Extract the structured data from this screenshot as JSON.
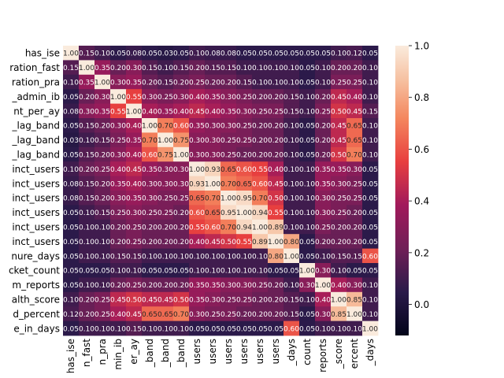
{
  "chart_data": {
    "type": "heatmap",
    "title": "",
    "xlabel": "",
    "ylabel": "",
    "row_labels": [
      "has_ise",
      "ration_fast",
      "ration_pra",
      "_admin_ib",
      "nt_per_ay",
      "_lag_band",
      "_lag_band",
      "_lag_band",
      "inct_users",
      "inct_users",
      "inct_users",
      "inct_users",
      "inct_users",
      "inct_users",
      "nure_days",
      "cket_count",
      "m_reports",
      "alth_score",
      "d_percent",
      "e_in_days"
    ],
    "col_labels": [
      "has_ise",
      "n_fast",
      "n_pra",
      "min_ib",
      "er_ay",
      "_band",
      "_band",
      "_band",
      "users",
      "users",
      "users",
      "users",
      "users",
      "users",
      "_days",
      "count",
      "reports",
      "_score",
      "ercent",
      "_days"
    ],
    "colorbar": {
      "min": -0.12,
      "max": 1.0,
      "ticks": [
        1.0,
        0.8,
        0.6,
        0.4,
        0.2,
        0.0
      ],
      "tick_labels": [
        "1.0",
        "0.8",
        "0.6",
        "0.4",
        "0.2",
        "0.0"
      ]
    },
    "colormap": "rocket",
    "annotations": true,
    "values": [
      [
        1.0,
        0.15,
        0.1,
        0.05,
        0.08,
        0.05,
        0.03,
        0.05,
        0.1,
        0.08,
        0.08,
        0.05,
        0.05,
        0.05,
        0.05,
        0.05,
        0.05,
        0.1,
        0.12,
        0.05
      ],
      [
        0.15,
        1.0,
        0.35,
        0.2,
        0.3,
        0.15,
        0.1,
        0.15,
        0.2,
        0.15,
        0.15,
        0.1,
        0.1,
        0.1,
        0.1,
        0.05,
        0.1,
        0.2,
        0.2,
        0.1
      ],
      [
        0.1,
        0.35,
        1.0,
        0.3,
        0.35,
        0.2,
        0.15,
        0.2,
        0.25,
        0.2,
        0.2,
        0.15,
        0.1,
        0.1,
        0.1,
        0.05,
        0.1,
        0.25,
        0.25,
        0.1
      ],
      [
        0.05,
        0.2,
        0.3,
        1.0,
        0.55,
        0.3,
        0.25,
        0.3,
        0.4,
        0.35,
        0.3,
        0.25,
        0.2,
        0.2,
        0.15,
        0.1,
        0.2,
        0.45,
        0.4,
        0.1
      ],
      [
        0.08,
        0.3,
        0.35,
        0.55,
        1.0,
        0.4,
        0.35,
        0.4,
        0.45,
        0.4,
        0.35,
        0.3,
        0.25,
        0.25,
        0.15,
        0.1,
        0.25,
        0.5,
        0.45,
        0.15
      ],
      [
        0.05,
        0.15,
        0.2,
        0.3,
        0.4,
        1.0,
        0.7,
        0.6,
        0.35,
        0.3,
        0.3,
        0.25,
        0.2,
        0.2,
        0.1,
        0.05,
        0.2,
        0.45,
        0.65,
        0.1
      ],
      [
        0.03,
        0.1,
        0.15,
        0.25,
        0.35,
        0.7,
        1.0,
        0.75,
        0.3,
        0.3,
        0.25,
        0.25,
        0.2,
        0.2,
        0.1,
        0.05,
        0.2,
        0.45,
        0.65,
        0.1
      ],
      [
        0.05,
        0.15,
        0.2,
        0.3,
        0.4,
        0.6,
        0.75,
        1.0,
        0.3,
        0.3,
        0.25,
        0.2,
        0.2,
        0.2,
        0.1,
        0.05,
        0.2,
        0.5,
        0.7,
        0.1
      ],
      [
        0.1,
        0.2,
        0.25,
        0.4,
        0.45,
        0.35,
        0.3,
        0.3,
        1.0,
        0.93,
        0.65,
        0.6,
        0.55,
        0.4,
        0.1,
        0.1,
        0.35,
        0.35,
        0.3,
        0.05
      ],
      [
        0.08,
        0.15,
        0.2,
        0.35,
        0.4,
        0.3,
        0.3,
        0.3,
        0.93,
        1.0,
        0.7,
        0.65,
        0.6,
        0.45,
        0.1,
        0.1,
        0.35,
        0.3,
        0.25,
        0.05
      ],
      [
        0.08,
        0.15,
        0.2,
        0.3,
        0.35,
        0.3,
        0.25,
        0.25,
        0.65,
        0.7,
        1.0,
        0.95,
        0.7,
        0.5,
        0.1,
        0.1,
        0.3,
        0.25,
        0.25,
        0.05
      ],
      [
        0.05,
        0.1,
        0.15,
        0.25,
        0.3,
        0.25,
        0.25,
        0.2,
        0.6,
        0.65,
        0.95,
        1.0,
        0.94,
        0.55,
        0.1,
        0.1,
        0.3,
        0.25,
        0.2,
        0.05
      ],
      [
        0.05,
        0.1,
        0.1,
        0.2,
        0.25,
        0.2,
        0.2,
        0.2,
        0.55,
        0.6,
        0.7,
        0.94,
        1.0,
        0.89,
        0.1,
        0.1,
        0.25,
        0.2,
        0.2,
        0.05
      ],
      [
        0.05,
        0.1,
        0.1,
        0.2,
        0.25,
        0.2,
        0.2,
        0.2,
        0.4,
        0.45,
        0.5,
        0.55,
        0.89,
        1.0,
        0.8,
        0.05,
        0.2,
        0.2,
        0.2,
        0.05
      ],
      [
        0.05,
        0.1,
        0.1,
        0.15,
        0.15,
        0.1,
        0.1,
        0.1,
        0.1,
        0.1,
        0.1,
        0.1,
        0.1,
        0.8,
        1.0,
        0.05,
        0.1,
        0.15,
        0.15,
        0.6
      ],
      [
        0.05,
        0.05,
        0.05,
        0.1,
        0.1,
        0.05,
        0.05,
        0.05,
        0.1,
        0.1,
        0.1,
        0.1,
        0.1,
        0.05,
        0.05,
        1.0,
        0.3,
        0.1,
        0.05,
        0.05
      ],
      [
        0.05,
        0.1,
        0.1,
        0.2,
        0.25,
        0.2,
        0.2,
        0.2,
        0.35,
        0.35,
        0.3,
        0.3,
        0.25,
        0.2,
        0.1,
        0.3,
        1.0,
        0.4,
        0.3,
        0.1
      ],
      [
        0.1,
        0.2,
        0.25,
        0.45,
        0.5,
        0.45,
        0.45,
        0.5,
        0.35,
        0.3,
        0.25,
        0.25,
        0.2,
        0.2,
        0.15,
        0.1,
        0.4,
        1.0,
        0.85,
        0.1
      ],
      [
        0.12,
        0.2,
        0.25,
        0.4,
        0.45,
        0.65,
        0.65,
        0.7,
        0.3,
        0.25,
        0.25,
        0.2,
        0.2,
        0.2,
        0.15,
        0.05,
        0.3,
        0.85,
        1.0,
        0.1
      ],
      [
        0.05,
        0.1,
        0.1,
        0.1,
        0.15,
        0.1,
        0.1,
        0.1,
        0.05,
        0.05,
        0.05,
        0.05,
        0.05,
        0.05,
        0.6,
        0.05,
        0.1,
        0.1,
        0.1,
        1.0
      ]
    ]
  }
}
